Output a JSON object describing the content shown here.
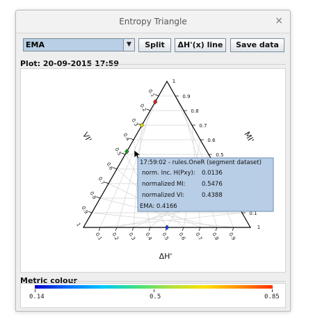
{
  "window": {
    "title": "Entropy Triangle",
    "close_glyph": "×"
  },
  "toolbar": {
    "dataset_selected": "EMA",
    "split_label": "Split",
    "line_label": "ΔH'(x) line",
    "save_label": "Save data"
  },
  "plot": {
    "label": "Plot: 20-09-2015 17:59",
    "axis_left": "VI'",
    "axis_right": "MI'",
    "axis_bottom": "ΔH'",
    "ticks": [
      "0.1",
      "0.2",
      "0.3",
      "0.4",
      "0.5",
      "0.6",
      "0.7",
      "0.8",
      "0.9"
    ],
    "corner_tick": "1",
    "points": [
      {
        "color": "#d62020",
        "dh": 0.0,
        "mi": 0.86,
        "vi": 0.14
      },
      {
        "color": "#d8d800",
        "dh": 0.0,
        "mi": 0.7,
        "vi": 0.3
      },
      {
        "color": "#1a9a1a",
        "dh": 0.0,
        "mi": 0.52,
        "vi": 0.48
      },
      {
        "color": "#1f3fd0",
        "dh": 0.5,
        "mi": 0.0,
        "vi": 0.5
      }
    ],
    "tooltip": {
      "header": "17:59:02 - rules.OneR (segment dataset)",
      "rows": [
        {
          "label": "norm. Inc. H(Pxy):",
          "value": "0.0136"
        },
        {
          "label": "normalized MI:",
          "value": "0.5476"
        },
        {
          "label": "normalized VI:",
          "value": "0.4388"
        }
      ],
      "footer": "EMA: 0.4166"
    }
  },
  "metric": {
    "label": "Metric colour",
    "min": "0.14",
    "mid": "0.5",
    "max": "0.85",
    "colors": [
      "#0000c8",
      "#00c8ff",
      "#40e080",
      "#ffe000",
      "#ff3000"
    ]
  }
}
